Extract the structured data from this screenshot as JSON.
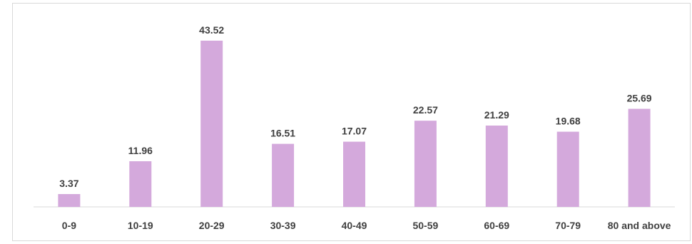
{
  "chart_data": {
    "type": "bar",
    "categories": [
      "0-9",
      "10-19",
      "20-29",
      "30-39",
      "40-49",
      "50-59",
      "60-69",
      "70-79",
      "80 and above"
    ],
    "values": [
      3.37,
      11.96,
      43.52,
      16.51,
      17.07,
      22.57,
      21.29,
      19.68,
      25.69
    ],
    "data_labels": [
      "3.37",
      "11.96",
      "43.52",
      "16.51",
      "17.07",
      "22.57",
      "21.29",
      "19.68",
      "25.69"
    ],
    "ylim": [
      0,
      43.52
    ],
    "grid": false,
    "legend": "none",
    "bar_color": "#d4a9dc",
    "axis_color": "#d9d9d9",
    "text_color": "#404040"
  }
}
